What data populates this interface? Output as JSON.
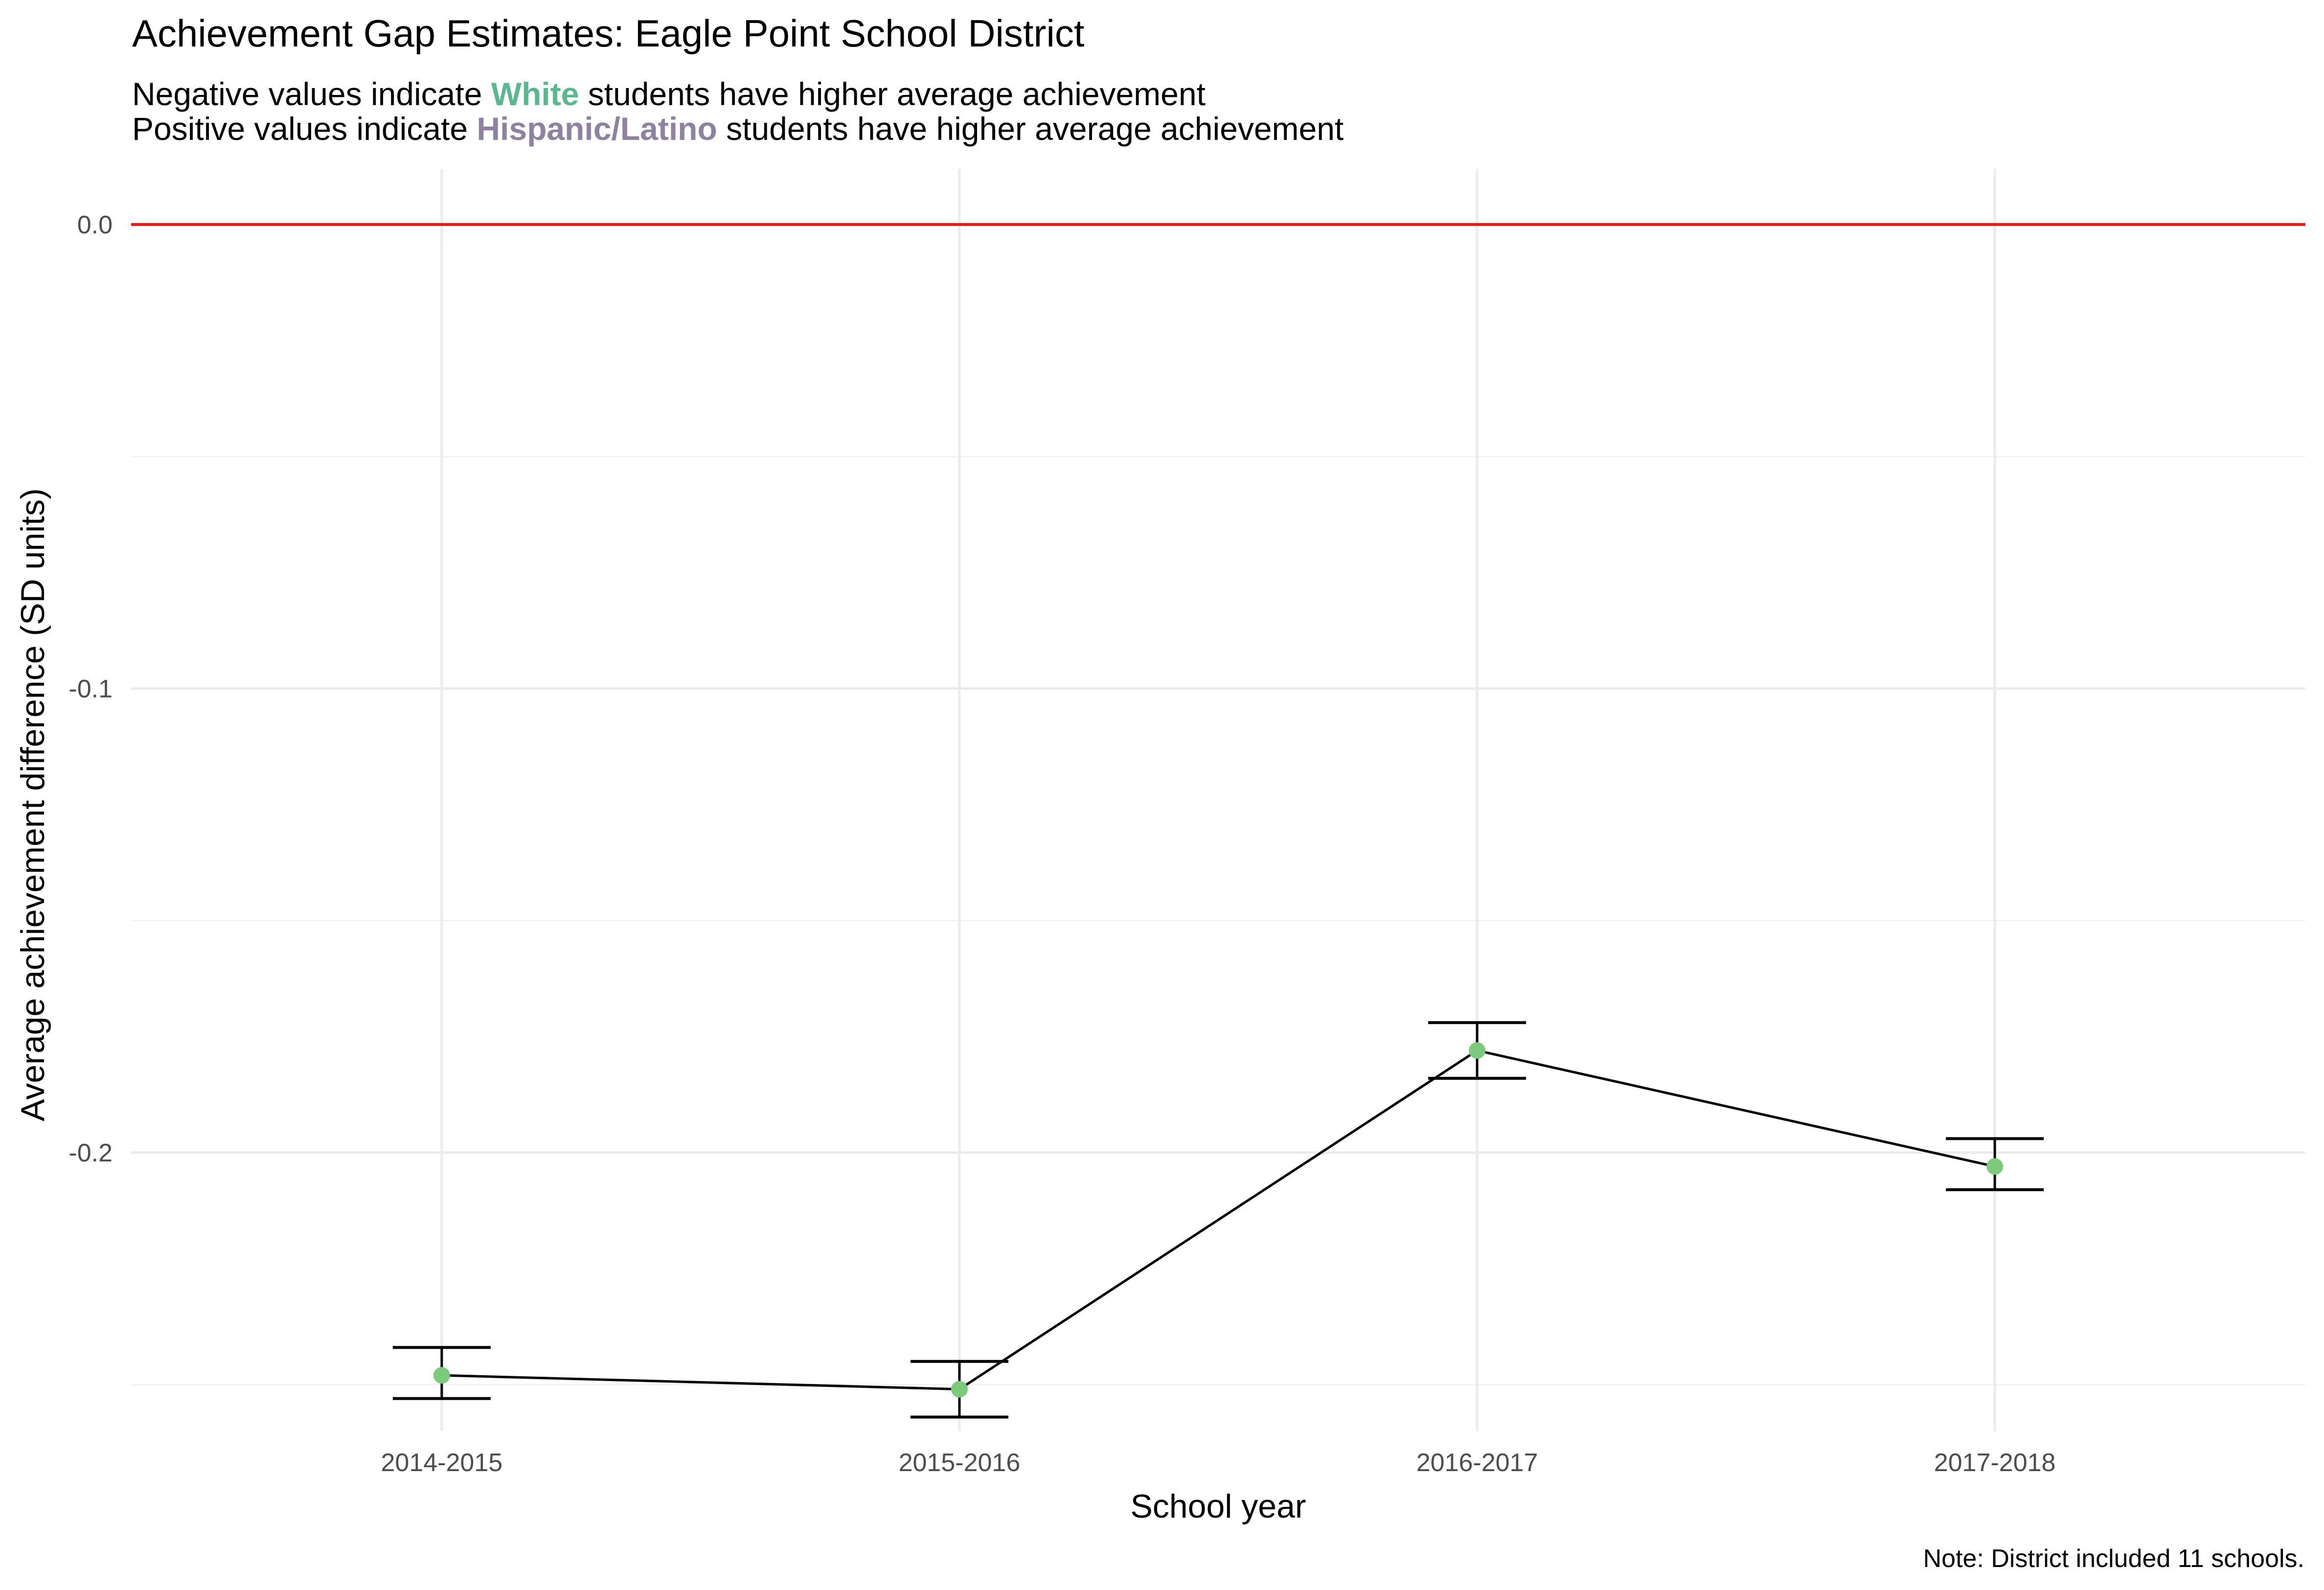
{
  "chart_data": {
    "type": "line",
    "title": "Achievement Gap Estimates: Eagle Point School District",
    "subtitle": {
      "line1": {
        "prefix": "Negative values indicate ",
        "highlight": "White",
        "highlight_color": "#5AB891",
        "suffix": " students have higher average achievement"
      },
      "line2": {
        "prefix": "Positive values indicate ",
        "highlight": "Hispanic/Latino",
        "highlight_color": "#8E82A0",
        "suffix": " students have higher average achievement"
      }
    },
    "xlabel": "School year",
    "ylabel": "Average achievement difference (SD units)",
    "caption": "Note: District included 11 schools.",
    "categories": [
      "2014-2015",
      "2015-2016",
      "2016-2017",
      "2017-2018"
    ],
    "series": [
      {
        "values": [
          -0.248,
          -0.251,
          -0.178,
          -0.203
        ],
        "error_lower": [
          -0.253,
          -0.257,
          -0.184,
          -0.208
        ],
        "error_upper": [
          -0.242,
          -0.245,
          -0.172,
          -0.197
        ],
        "line_color": "#000000",
        "point_color": "#7CCB7C"
      }
    ],
    "ylim": [
      -0.26,
      0.012
    ],
    "yticks": [
      {
        "value": 0.0,
        "label": "0.0"
      },
      {
        "value": -0.1,
        "label": "-0.1"
      },
      {
        "value": -0.2,
        "label": "-0.2"
      }
    ],
    "yminor": [
      -0.05,
      -0.15,
      -0.25
    ],
    "reference_line": {
      "value": 0.0,
      "color": "#E41A1C"
    },
    "grid": true
  }
}
